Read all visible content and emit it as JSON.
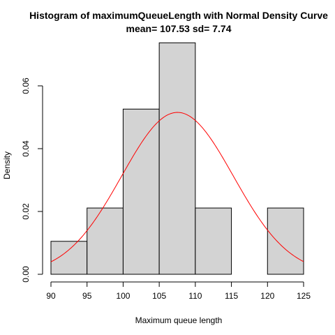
{
  "chart_data": {
    "type": "bar",
    "title": "Histogram of maximumQueueLength with Normal Density Curve",
    "subtitle": "mean= 107.53 sd= 7.74",
    "xlabel": "Maximum queue length",
    "ylabel": "Density",
    "xlim": [
      90,
      125
    ],
    "ylim": [
      0,
      0.074
    ],
    "x_ticks": [
      90,
      95,
      100,
      105,
      110,
      115,
      120,
      125
    ],
    "y_ticks": [
      0.0,
      0.02,
      0.04,
      0.06
    ],
    "y_tick_labels": [
      "0.00",
      "0.02",
      "0.04",
      "0.06"
    ],
    "bins": [
      {
        "from": 90,
        "to": 95,
        "density": 0.0105
      },
      {
        "from": 95,
        "to": 100,
        "density": 0.0211
      },
      {
        "from": 100,
        "to": 105,
        "density": 0.0526
      },
      {
        "from": 105,
        "to": 110,
        "density": 0.0737
      },
      {
        "from": 110,
        "to": 115,
        "density": 0.0211
      },
      {
        "from": 115,
        "to": 120,
        "density": 0.0
      },
      {
        "from": 120,
        "to": 125,
        "density": 0.0211
      }
    ],
    "bar_fill": "#d3d3d3",
    "density_curve": {
      "type": "normal",
      "mean": 107.53,
      "sd": 7.74,
      "color": "#ff0000"
    }
  }
}
